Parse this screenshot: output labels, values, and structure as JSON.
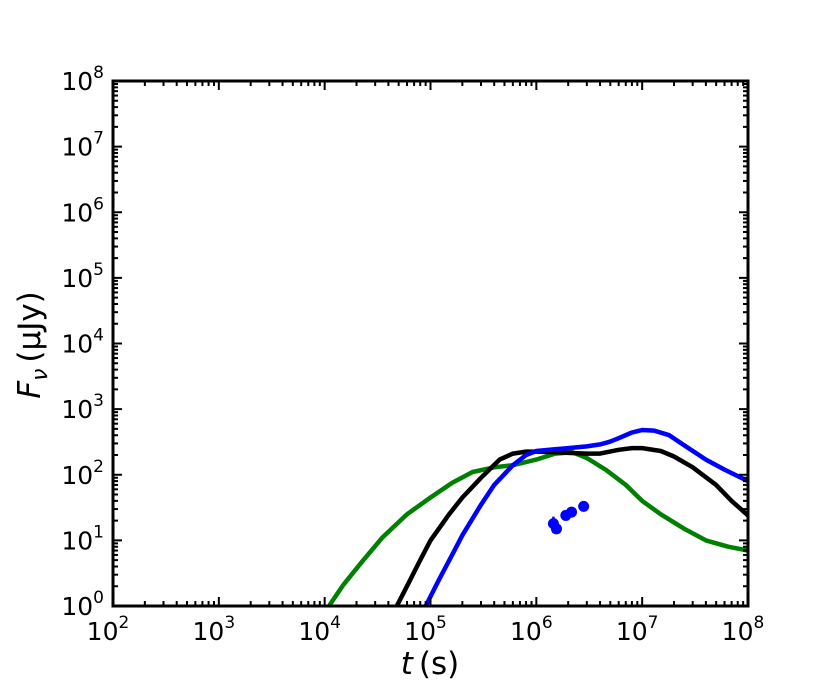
{
  "chart_data": {
    "type": "line",
    "title": "",
    "xlabel": {
      "symbol": "t",
      "unit": "(s)"
    },
    "ylabel": {
      "symbol": "F",
      "subscript": "ν",
      "unit": "(μJy)"
    },
    "x_scale": "log",
    "y_scale": "log",
    "xlim": [
      100,
      100000000
    ],
    "ylim": [
      1,
      100000000
    ],
    "x_ticks": [
      {
        "base": "10",
        "exp": "2"
      },
      {
        "base": "10",
        "exp": "3"
      },
      {
        "base": "10",
        "exp": "4"
      },
      {
        "base": "10",
        "exp": "5"
      },
      {
        "base": "10",
        "exp": "6"
      },
      {
        "base": "10",
        "exp": "7"
      },
      {
        "base": "10",
        "exp": "8"
      }
    ],
    "y_ticks": [
      {
        "base": "10",
        "exp": "0"
      },
      {
        "base": "10",
        "exp": "1"
      },
      {
        "base": "10",
        "exp": "2"
      },
      {
        "base": "10",
        "exp": "3"
      },
      {
        "base": "10",
        "exp": "4"
      },
      {
        "base": "10",
        "exp": "5"
      },
      {
        "base": "10",
        "exp": "6"
      },
      {
        "base": "10",
        "exp": "7"
      },
      {
        "base": "10",
        "exp": "8"
      }
    ],
    "grid": false,
    "legend": "none",
    "series": [
      {
        "color": "#008000",
        "x": [
          11000,
          15000,
          22000,
          35000,
          60000,
          100000,
          160000,
          250000,
          400000,
          600000,
          1000000,
          1500000,
          2200000,
          3000000,
          4500000,
          7000000,
          10000000,
          15000000,
          25000000,
          40000000,
          65000000,
          100000000
        ],
        "y": [
          1,
          2.1,
          4.5,
          11,
          25,
          45,
          75,
          110,
          130,
          140,
          170,
          210,
          220,
          180,
          120,
          70,
          40,
          25,
          15,
          10,
          8,
          7
        ]
      },
      {
        "color": "#000000",
        "x": [
          48000,
          60000,
          80000,
          100000,
          150000,
          200000,
          300000,
          450000,
          600000,
          800000,
          1000000,
          1500000,
          2000000,
          3000000,
          4000000,
          6000000,
          8000000,
          10000000,
          15000000,
          20000000,
          30000000,
          50000000,
          70000000,
          100000000
        ],
        "y": [
          1,
          2,
          5,
          10,
          25,
          45,
          90,
          170,
          210,
          225,
          225,
          220,
          215,
          210,
          210,
          240,
          255,
          255,
          230,
          190,
          130,
          70,
          40,
          24
        ]
      },
      {
        "color": "#0000ff",
        "x": [
          90000,
          120000,
          160000,
          200000,
          300000,
          400000,
          600000,
          800000,
          1000000,
          1500000,
          2000000,
          3000000,
          4000000,
          5000000,
          6000000,
          8000000,
          10000000,
          13000000,
          18000000,
          25000000,
          40000000,
          60000000,
          100000000
        ],
        "y": [
          1,
          2.5,
          6,
          12,
          35,
          70,
          140,
          200,
          230,
          245,
          255,
          270,
          290,
          320,
          360,
          440,
          480,
          470,
          400,
          280,
          170,
          120,
          80
        ]
      }
    ],
    "points": {
      "color": "#0000ff",
      "data": [
        {
          "x": 1450000,
          "y": 18,
          "yerr": [
            13,
            23
          ]
        },
        {
          "x": 1550000,
          "y": 15,
          "yerr": [
            13,
            16
          ]
        },
        {
          "x": 1900000,
          "y": 24,
          "yerr": [
            22,
            26
          ]
        },
        {
          "x": 2150000,
          "y": 27,
          "yerr": [
            25,
            29
          ]
        },
        {
          "x": 2800000,
          "y": 33,
          "yerr": [
            31,
            35
          ]
        }
      ]
    }
  }
}
